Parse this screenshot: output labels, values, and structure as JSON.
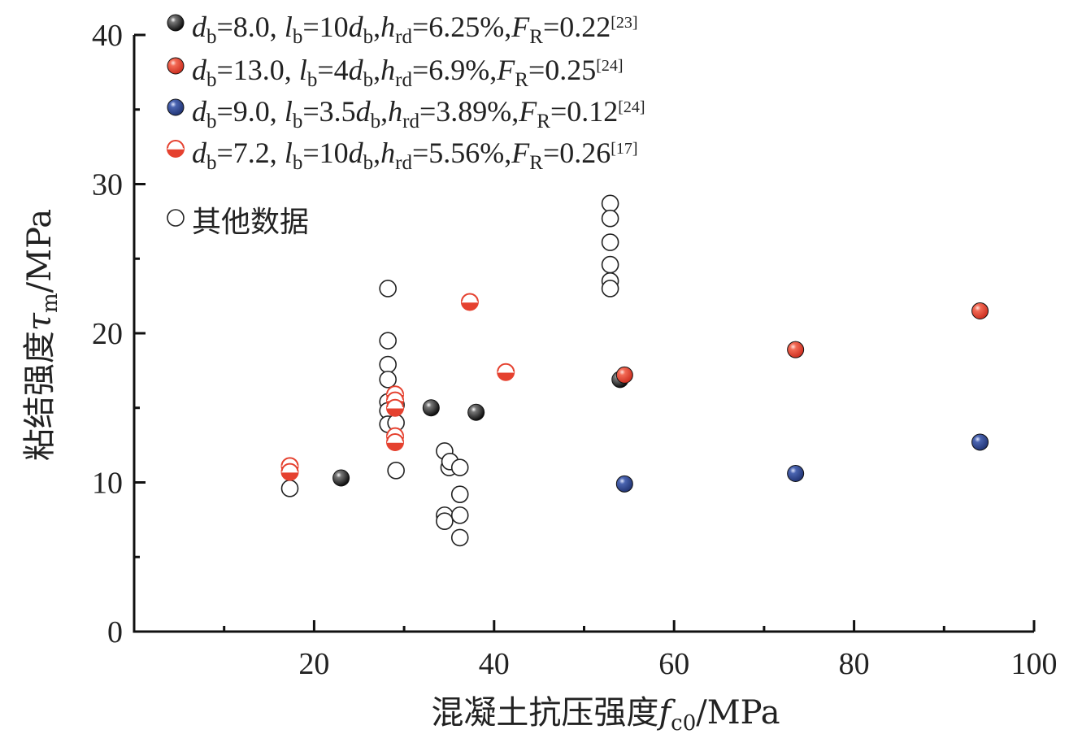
{
  "chart_data": {
    "type": "scatter",
    "x_axis": {
      "label_main": "混凝土抗压强度",
      "label_symbol": "f",
      "label_sub": "c0",
      "label_unit": "/MPa",
      "range": [
        0,
        100
      ],
      "ticks": [
        20,
        40,
        60,
        80,
        100
      ],
      "minor_ticks": [
        10,
        30,
        50,
        70,
        90
      ]
    },
    "y_axis": {
      "label_main": "粘结强度",
      "label_symbol": "τ",
      "label_sub": "m",
      "label_unit": "/MPa",
      "range": [
        0,
        40
      ],
      "ticks": [
        0,
        10,
        20,
        30,
        40
      ],
      "minor_ticks": [
        5,
        15,
        25,
        35
      ]
    },
    "legend_position": "top-left",
    "grid": false,
    "series": [
      {
        "name": "d_b=8.0, l_b=10d_b, h_rd=6.25%, F_R=0.22 [23]",
        "marker": "filled",
        "color": "#111111",
        "legend_parts": [
          {
            "t": "d",
            "s": "i"
          },
          {
            "t": "b",
            "s": "sub"
          },
          {
            "t": "=8.0, "
          },
          {
            "t": "l",
            "s": "i"
          },
          {
            "t": "b",
            "s": "sub"
          },
          {
            "t": "=10"
          },
          {
            "t": "d",
            "s": "i"
          },
          {
            "t": "b",
            "s": "sub"
          },
          {
            "t": ","
          },
          {
            "t": "h",
            "s": "i"
          },
          {
            "t": "rd",
            "s": "sub"
          },
          {
            "t": "=6.25%,"
          },
          {
            "t": "F",
            "s": "i"
          },
          {
            "t": "R",
            "s": "sub"
          },
          {
            "t": "=0.22"
          },
          {
            "t": "[23]",
            "s": "sup"
          }
        ],
        "points": [
          [
            23,
            10.3
          ],
          [
            33,
            15.0
          ],
          [
            38,
            14.7
          ],
          [
            54,
            16.9
          ]
        ]
      },
      {
        "name": "d_b=13.0, l_b=4d_b, h_rd=6.9%, F_R=0.25 [24]",
        "marker": "filled",
        "color": "#e5412f",
        "legend_parts": [
          {
            "t": "d",
            "s": "i"
          },
          {
            "t": "b",
            "s": "sub"
          },
          {
            "t": "=13.0, "
          },
          {
            "t": "l",
            "s": "i"
          },
          {
            "t": "b",
            "s": "sub"
          },
          {
            "t": "=4"
          },
          {
            "t": "d",
            "s": "i"
          },
          {
            "t": "b",
            "s": "sub"
          },
          {
            "t": ","
          },
          {
            "t": "h",
            "s": "i"
          },
          {
            "t": "rd",
            "s": "sub"
          },
          {
            "t": "=6.9%,"
          },
          {
            "t": "F",
            "s": "i"
          },
          {
            "t": "R",
            "s": "sub"
          },
          {
            "t": "=0.25"
          },
          {
            "t": "[24]",
            "s": "sup"
          }
        ],
        "points": [
          [
            54.5,
            17.2
          ],
          [
            73.5,
            18.9
          ],
          [
            94,
            21.5
          ]
        ]
      },
      {
        "name": "d_b=9.0, l_b=3.5d_b, h_rd=3.89%, F_R=0.12 [24]",
        "marker": "filled",
        "color": "#2d4a94",
        "legend_parts": [
          {
            "t": "d",
            "s": "i"
          },
          {
            "t": "b",
            "s": "sub"
          },
          {
            "t": "=9.0, "
          },
          {
            "t": "l",
            "s": "i"
          },
          {
            "t": "b",
            "s": "sub"
          },
          {
            "t": "=3.5"
          },
          {
            "t": "d",
            "s": "i"
          },
          {
            "t": "b",
            "s": "sub"
          },
          {
            "t": ","
          },
          {
            "t": "h",
            "s": "i"
          },
          {
            "t": "rd",
            "s": "sub"
          },
          {
            "t": "=3.89%,"
          },
          {
            "t": "F",
            "s": "i"
          },
          {
            "t": "R",
            "s": "sub"
          },
          {
            "t": "=0.12"
          },
          {
            "t": "[24]",
            "s": "sup"
          }
        ],
        "points": [
          [
            54.5,
            9.9
          ],
          [
            73.5,
            10.6
          ],
          [
            94,
            12.7
          ]
        ]
      },
      {
        "name": "d_b=7.2, l_b=10d_b, h_rd=5.56%, F_R=0.26 [17]",
        "marker": "half",
        "color": "#e5412f",
        "legend_parts": [
          {
            "t": "d",
            "s": "i"
          },
          {
            "t": "b",
            "s": "sub"
          },
          {
            "t": "=7.2, "
          },
          {
            "t": "l",
            "s": "i"
          },
          {
            "t": "b",
            "s": "sub"
          },
          {
            "t": "=10"
          },
          {
            "t": "d",
            "s": "i"
          },
          {
            "t": "b",
            "s": "sub"
          },
          {
            "t": ","
          },
          {
            "t": "h",
            "s": "i"
          },
          {
            "t": "rd",
            "s": "sub"
          },
          {
            "t": "=5.56%,"
          },
          {
            "t": "F",
            "s": "i"
          },
          {
            "t": "R",
            "s": "sub"
          },
          {
            "t": "=0.26"
          },
          {
            "t": "[17]",
            "s": "sup"
          }
        ],
        "points": [
          [
            17.3,
            11.1
          ],
          [
            17.3,
            10.7
          ],
          [
            29,
            15.9
          ],
          [
            29,
            15.5
          ],
          [
            29,
            15.0
          ],
          [
            29,
            13.1
          ],
          [
            29,
            12.7
          ],
          [
            37.3,
            22.1
          ],
          [
            41.3,
            17.4
          ]
        ]
      },
      {
        "name": "其他数据",
        "marker": "open",
        "color": "#222222",
        "legend_parts": [
          {
            "t": "其他数据",
            "s": "cjk"
          }
        ],
        "points": [
          [
            17.3,
            9.6
          ],
          [
            28.2,
            23.0
          ],
          [
            28.2,
            19.5
          ],
          [
            28.2,
            17.9
          ],
          [
            28.2,
            16.9
          ],
          [
            28.2,
            15.4
          ],
          [
            28.2,
            14.8
          ],
          [
            28.2,
            13.9
          ],
          [
            29.1,
            15.2
          ],
          [
            29.1,
            14.0
          ],
          [
            29.1,
            10.8
          ],
          [
            34.5,
            12.1
          ],
          [
            35.0,
            11.0
          ],
          [
            35.1,
            11.4
          ],
          [
            36.2,
            11.0
          ],
          [
            36.2,
            9.2
          ],
          [
            34.5,
            7.8
          ],
          [
            34.5,
            7.4
          ],
          [
            36.2,
            7.8
          ],
          [
            36.2,
            6.3
          ],
          [
            52.9,
            28.7
          ],
          [
            52.9,
            27.7
          ],
          [
            52.9,
            26.1
          ],
          [
            52.9,
            24.6
          ],
          [
            52.9,
            23.5
          ],
          [
            52.9,
            23.0
          ]
        ]
      }
    ]
  }
}
